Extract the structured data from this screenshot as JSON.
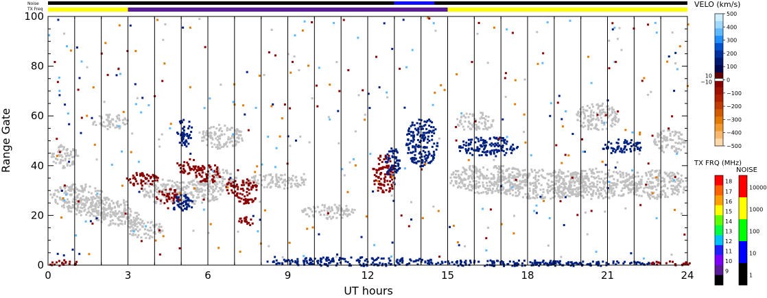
{
  "chart_data": {
    "type": "heatmap",
    "xlabel": "UT hours",
    "ylabel": "Range Gate",
    "xlim": [
      0,
      24
    ],
    "ylim": [
      0,
      100
    ],
    "x_ticks": [
      "0",
      "3",
      "6",
      "9",
      "12",
      "15",
      "18",
      "21",
      "24"
    ],
    "y_ticks": [
      "0",
      "20",
      "40",
      "60",
      "80",
      "100"
    ],
    "top_strips": [
      {
        "label": "Noise",
        "segments": [
          {
            "from": 0,
            "to": 13,
            "color": "#000000"
          },
          {
            "from": 13,
            "to": 14.5,
            "color": "#1010ff"
          },
          {
            "from": 14.5,
            "to": 24,
            "color": "#000000"
          }
        ]
      },
      {
        "label": "TX Freq",
        "segments": [
          {
            "from": 0,
            "to": 3,
            "color": "#ffff00"
          },
          {
            "from": 3,
            "to": 15,
            "color": "#5a1a9a"
          },
          {
            "from": 15,
            "to": 24,
            "color": "#ffff00"
          }
        ]
      }
    ],
    "scan_lines_ut": [
      1,
      2,
      3,
      4,
      5,
      6,
      7,
      8,
      9,
      10,
      11,
      12,
      13,
      14,
      15,
      16,
      17,
      18,
      19,
      20,
      21,
      22,
      23
    ],
    "regions": [
      {
        "name": "ground scatter",
        "color": "#c0c0c0",
        "blobs": [
          {
            "x": 1.1,
            "y": 28,
            "rx": 1.0,
            "ry": 5
          },
          {
            "x": 1.8,
            "y": 24,
            "rx": 1.3,
            "ry": 4
          },
          {
            "x": 0.6,
            "y": 44,
            "rx": 0.5,
            "ry": 5
          },
          {
            "x": 2.5,
            "y": 20,
            "rx": 0.9,
            "ry": 4
          },
          {
            "x": 3.6,
            "y": 15,
            "rx": 0.7,
            "ry": 4
          },
          {
            "x": 4.2,
            "y": 30,
            "rx": 0.8,
            "ry": 5
          },
          {
            "x": 5.6,
            "y": 30,
            "rx": 1.0,
            "ry": 5
          },
          {
            "x": 2.3,
            "y": 58,
            "rx": 0.7,
            "ry": 3
          },
          {
            "x": 6.5,
            "y": 52,
            "rx": 0.8,
            "ry": 5
          },
          {
            "x": 6.3,
            "y": 35,
            "rx": 0.8,
            "ry": 4
          },
          {
            "x": 8.5,
            "y": 34,
            "rx": 1.2,
            "ry": 3
          },
          {
            "x": 10.5,
            "y": 22,
            "rx": 1.0,
            "ry": 3
          },
          {
            "x": 16.5,
            "y": 35,
            "rx": 1.5,
            "ry": 6
          },
          {
            "x": 18.5,
            "y": 33,
            "rx": 2.0,
            "ry": 6
          },
          {
            "x": 20.5,
            "y": 33,
            "rx": 1.8,
            "ry": 6
          },
          {
            "x": 22.8,
            "y": 33,
            "rx": 1.2,
            "ry": 6
          },
          {
            "x": 16.0,
            "y": 58,
            "rx": 0.7,
            "ry": 4
          },
          {
            "x": 20.6,
            "y": 60,
            "rx": 0.8,
            "ry": 6
          },
          {
            "x": 23.3,
            "y": 50,
            "rx": 0.6,
            "ry": 5
          }
        ]
      },
      {
        "name": "negative velocity",
        "color": "#8b0000",
        "blobs": [
          {
            "x": 12.6,
            "y": 37,
            "rx": 0.45,
            "ry": 8
          },
          {
            "x": 5.3,
            "y": 40,
            "rx": 0.55,
            "ry": 3
          },
          {
            "x": 6.0,
            "y": 37,
            "rx": 0.5,
            "ry": 4
          },
          {
            "x": 7.4,
            "y": 30,
            "rx": 0.45,
            "ry": 5
          },
          {
            "x": 3.5,
            "y": 35,
            "rx": 0.6,
            "ry": 3
          },
          {
            "x": 4.5,
            "y": 28,
            "rx": 0.5,
            "ry": 3
          },
          {
            "x": 6.8,
            "y": 32,
            "rx": 0.3,
            "ry": 3
          },
          {
            "x": 7.4,
            "y": 18,
            "rx": 0.3,
            "ry": 2
          }
        ]
      },
      {
        "name": "positive velocity",
        "color": "#002080",
        "blobs": [
          {
            "x": 14.0,
            "y": 50,
            "rx": 0.6,
            "ry": 10
          },
          {
            "x": 12.9,
            "y": 42,
            "rx": 0.3,
            "ry": 6
          },
          {
            "x": 5.1,
            "y": 54,
            "rx": 0.3,
            "ry": 6
          },
          {
            "x": 5.0,
            "y": 25,
            "rx": 0.4,
            "ry": 4
          },
          {
            "x": 16.5,
            "y": 48,
            "rx": 1.2,
            "ry": 4
          },
          {
            "x": 21.5,
            "y": 48,
            "rx": 0.8,
            "ry": 3
          }
        ]
      },
      {
        "name": "near-range positive velocity",
        "color": "#002080",
        "blobs": [
          {
            "x": 11.5,
            "y": 1.8,
            "rx": 3.5,
            "ry": 1.8
          },
          {
            "x": 17.0,
            "y": 1.2,
            "rx": 3.0,
            "ry": 1.2
          },
          {
            "x": 20.0,
            "y": 1.0,
            "rx": 3.0,
            "ry": 1.0
          }
        ]
      },
      {
        "name": "near-range negative velocity",
        "color": "#8b0000",
        "blobs": [
          {
            "x": 0.5,
            "y": 1.2,
            "rx": 0.6,
            "ry": 1.2
          },
          {
            "x": 23.3,
            "y": 1.0,
            "rx": 0.8,
            "ry": 1.0
          }
        ]
      }
    ],
    "velo_scale": {
      "title": "VELO (km/s)",
      "ticks": [
        "500",
        "400",
        "300",
        "200",
        "100",
        "0",
        "−100",
        "−200",
        "−300",
        "−400",
        "−500"
      ],
      "side_labels": [
        "10",
        "−10"
      ],
      "colors": [
        "#d0f0ff",
        "#a0d8ff",
        "#60b8ff",
        "#2090ff",
        "#0050d0",
        "#0030a0",
        "#001870",
        "#000850",
        "#600000",
        "#8b0000",
        "#a01000",
        "#b02000",
        "#c03c00",
        "#d05a00",
        "#e07a00",
        "#f09a30",
        "#f8b870",
        "#ffd8a8"
      ]
    },
    "txfrq_scale": {
      "title": "TX FRQ (MHz)",
      "ticks": [
        "18",
        "17",
        "16",
        "15",
        "14",
        "13",
        "12",
        "11",
        "10",
        "9"
      ],
      "colors": [
        "#ff0000",
        "#ff6000",
        "#ffa000",
        "#ffff00",
        "#60ff00",
        "#00ff40",
        "#00c0ff",
        "#2020ff",
        "#8000ff",
        "#5a1a9a",
        "#000000"
      ]
    },
    "noise_scale": {
      "title": "NOISE",
      "ticks": [
        "10000",
        "1000",
        "100",
        "10",
        "1"
      ],
      "colors": [
        "#ff0000",
        "#ffff00",
        "#00ff00",
        "#0000ff",
        "#000000"
      ]
    }
  }
}
